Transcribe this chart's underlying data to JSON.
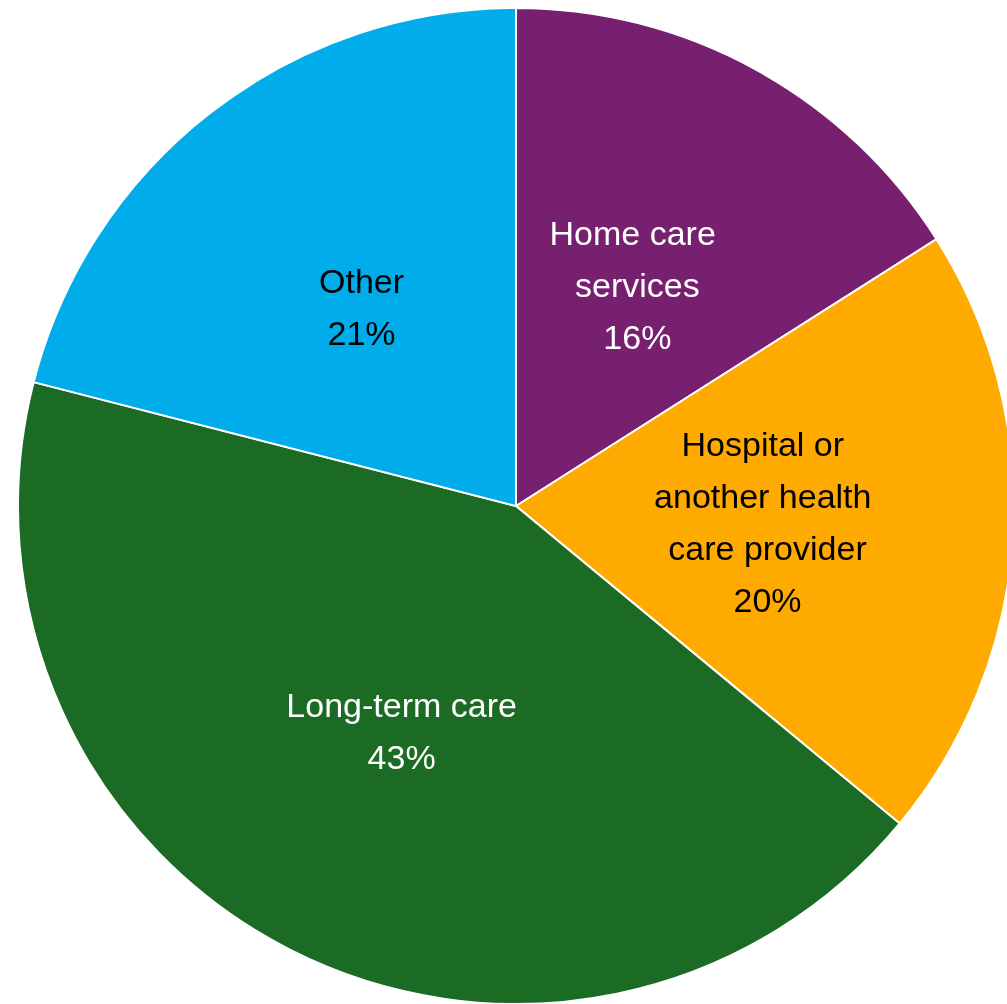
{
  "chart_data": {
    "type": "pie",
    "categories": [
      "Home care services",
      "Hospital or another health care provider",
      "Long-term care",
      "Other"
    ],
    "values": [
      16,
      20,
      43,
      21
    ],
    "colors": [
      "#782070",
      "#ffaa00",
      "#1c6b24",
      "#00adea"
    ],
    "value_labels": [
      "16%",
      "20%",
      "43%",
      "21%"
    ],
    "legend": false
  }
}
